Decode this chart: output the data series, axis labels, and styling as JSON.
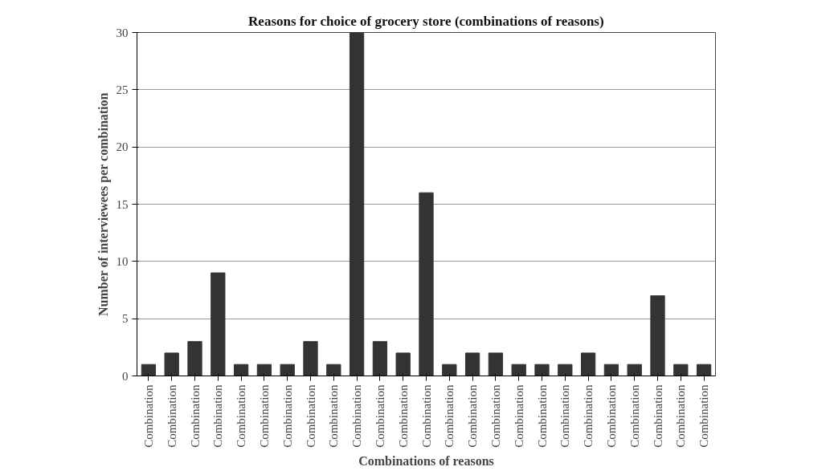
{
  "chart_data": {
    "type": "bar",
    "title": "Reasons for choice of grocery store (combinations of reasons)",
    "xlabel": "Combinations of reasons",
    "ylabel": "Number of interviewees per combination",
    "categories": [
      "Combination",
      "Combination",
      "Combination",
      "Combination",
      "Combination",
      "Combination",
      "Combination",
      "Combination",
      "Combination",
      "Combination",
      "Combination",
      "Combination",
      "Combination",
      "Combination",
      "Combination",
      "Combination",
      "Combination",
      "Combination",
      "Combination",
      "Combination",
      "Combination",
      "Combination",
      "Combination",
      "Combination",
      "Combination"
    ],
    "series": [
      {
        "color": "#333333",
        "values": [
          1,
          2,
          3,
          9,
          1,
          1,
          1,
          3,
          1,
          30,
          3,
          2,
          16,
          1,
          2,
          2,
          1,
          1,
          1,
          2,
          1,
          1,
          7,
          1,
          1
        ]
      }
    ],
    "ylim": [
      0,
      30
    ],
    "yticks": [
      0,
      5,
      10,
      15,
      20,
      25,
      30
    ],
    "grid": "y"
  }
}
